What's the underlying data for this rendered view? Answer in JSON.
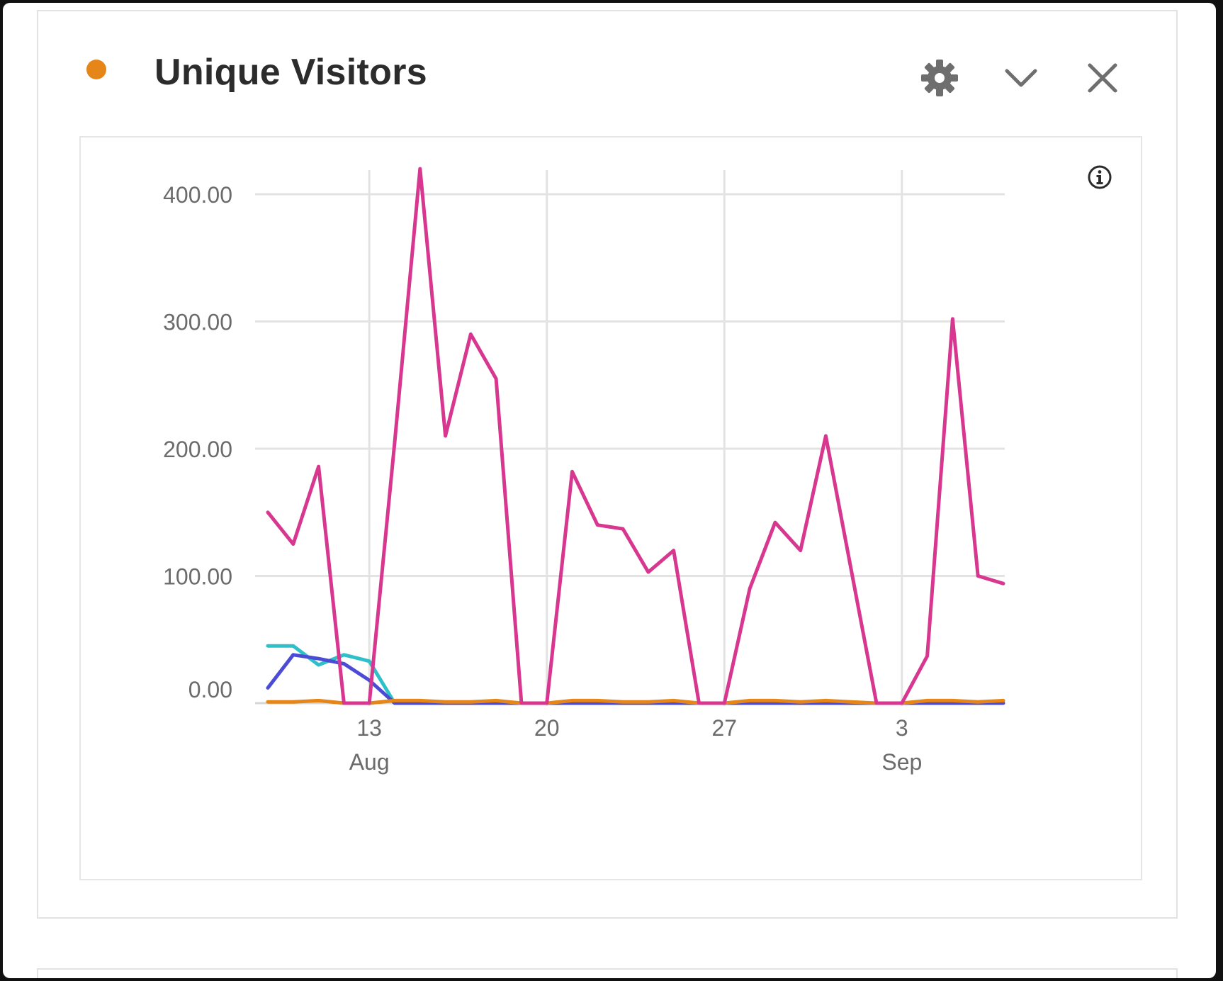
{
  "card": {
    "title": "Unique Visitors",
    "dot_color": "#e68619",
    "icons": {
      "settings": "gear-icon",
      "collapse": "chevron-down-icon",
      "close": "close-icon",
      "info": "info-icon"
    }
  },
  "chart_data": {
    "type": "line",
    "title": "",
    "xlabel": "",
    "ylabel": "",
    "x": [
      "Aug 9",
      "Aug 10",
      "Aug 11",
      "Aug 12",
      "Aug 13",
      "Aug 14",
      "Aug 15",
      "Aug 16",
      "Aug 17",
      "Aug 18",
      "Aug 19",
      "Aug 20",
      "Aug 21",
      "Aug 22",
      "Aug 23",
      "Aug 24",
      "Aug 25",
      "Aug 26",
      "Aug 27",
      "Aug 28",
      "Aug 29",
      "Aug 30",
      "Aug 31",
      "Sep 1",
      "Sep 2",
      "Sep 3",
      "Sep 4",
      "Sep 5",
      "Sep 6",
      "Sep 7"
    ],
    "x_ticks": [
      {
        "x": "Aug 13",
        "day": "13",
        "month": "Aug"
      },
      {
        "x": "Aug 20",
        "day": "20",
        "month": ""
      },
      {
        "x": "Aug 27",
        "day": "27",
        "month": ""
      },
      {
        "x": "Sep 3",
        "day": "3",
        "month": "Sep"
      }
    ],
    "y_ticks": [
      {
        "value": 0,
        "label": "0.00"
      },
      {
        "value": 100,
        "label": "100.00"
      },
      {
        "value": 200,
        "label": "200.00"
      },
      {
        "value": 300,
        "label": "300.00"
      },
      {
        "value": 400,
        "label": "400.00"
      }
    ],
    "ylim": [
      0,
      420
    ],
    "grid": true,
    "legend": "none",
    "series": [
      {
        "color": "#2fbfc9",
        "values": [
          45,
          45,
          30,
          38,
          33,
          0,
          null,
          null,
          null,
          null,
          null,
          null,
          null,
          null,
          null,
          null,
          null,
          null,
          null,
          null,
          null,
          null,
          null,
          null,
          null,
          null,
          null,
          null,
          null,
          null
        ]
      },
      {
        "color": "#4b4bd6",
        "values": [
          12,
          38,
          35,
          31,
          18,
          0,
          0,
          0,
          0,
          0,
          0,
          0,
          0,
          0,
          0,
          0,
          0,
          0,
          0,
          0,
          0,
          0,
          0,
          0,
          0,
          0,
          0,
          0,
          0,
          0
        ]
      },
      {
        "color": "#e68619",
        "values": [
          1,
          1,
          2,
          0,
          0,
          2,
          2,
          1,
          1,
          2,
          0,
          0,
          2,
          2,
          1,
          1,
          2,
          0,
          0,
          2,
          2,
          1,
          2,
          1,
          0,
          0,
          2,
          2,
          1,
          2
        ]
      },
      {
        "color": "#d83790",
        "values": [
          150,
          125,
          186,
          0,
          0,
          205,
          420,
          210,
          290,
          255,
          0,
          0,
          182,
          140,
          137,
          103,
          120,
          0,
          0,
          90,
          142,
          120,
          210,
          105,
          0,
          0,
          37,
          302,
          100,
          94
        ]
      }
    ]
  }
}
